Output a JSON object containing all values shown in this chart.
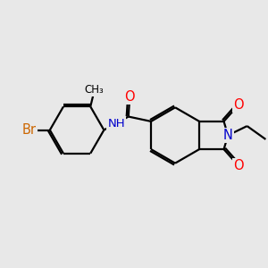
{
  "background_color": "#e8e8e8",
  "bond_color": "#000000",
  "bond_width": 1.6,
  "dbo": 0.07,
  "atom_colors": {
    "O": "#ff0000",
    "N": "#0000cc",
    "Br": "#cc6600",
    "C": "#000000"
  },
  "font_size": 9.5
}
